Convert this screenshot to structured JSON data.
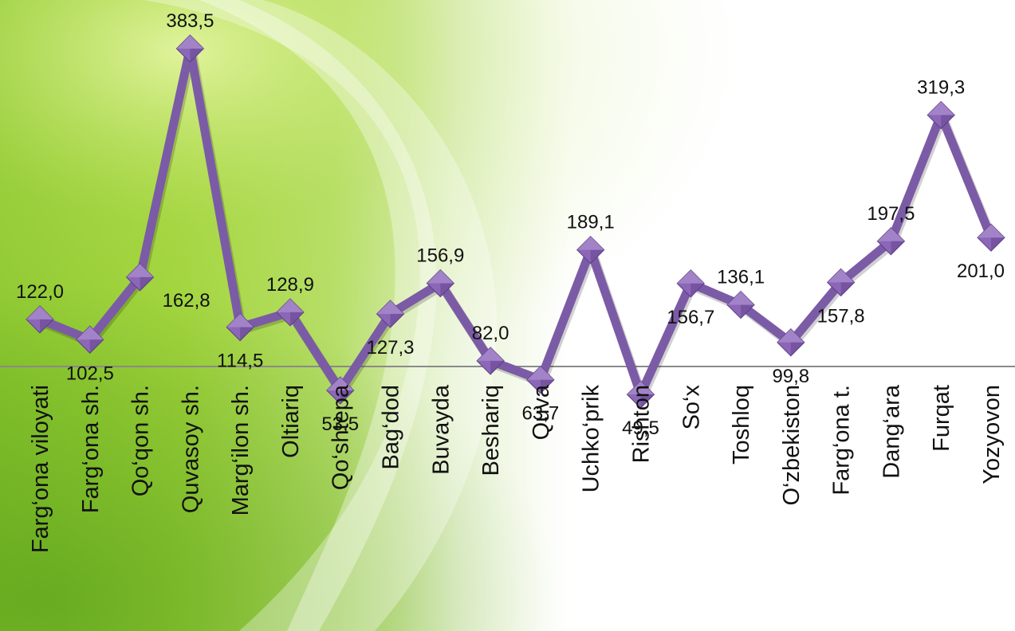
{
  "colors": {
    "line": "#7B5BA6",
    "marker": "#8C67B8",
    "marker_light": "#B79AD6",
    "marker_dark": "#5C3F86",
    "axis": "#8A8A8A",
    "green_bright": "#A5D63A",
    "green_deep": "#5DA61C",
    "background_white": "#FFFFFF"
  },
  "chart_data": {
    "type": "line",
    "title": "",
    "xlabel": "",
    "ylabel": "",
    "ylim": [
      40,
      400
    ],
    "grid": false,
    "legend": "none",
    "categories": [
      "Farg‘ona viloyati",
      "Farg‘ona sh.",
      "Qo‘qon sh.",
      "Quvasoy sh.",
      "Marg‘ilon sh.",
      "Oltiariq",
      "Qo‘shtepa",
      "Bag‘dod",
      "Buvayda",
      "Beshariq",
      "Quva",
      "Uchko‘prik",
      "Rishton",
      "So‘x",
      "Toshloq",
      "O‘zbekiston",
      "Farg‘ona t.",
      "Dang‘ara",
      "Furqat",
      "Yozyovon"
    ],
    "series": [
      {
        "values": [
          122.0,
          102.5,
          162.8,
          383.5,
          114.5,
          128.9,
          53.5,
          127.3,
          156.9,
          82.0,
          63.7,
          189.1,
          49.5,
          156.7,
          136.1,
          99.8,
          157.8,
          197.5,
          319.3,
          201.0
        ],
        "labels": [
          "122,0",
          "102,5",
          "162,8",
          "383,5",
          "114,5",
          "128,9",
          "53,5",
          "127,3",
          "156,9",
          "82,0",
          "63,7",
          "189,1",
          "49,5",
          "156,7",
          "136,1",
          "99,8",
          "157,8",
          "197,5",
          "319,3",
          "201,0"
        ],
        "label_positions": [
          "above",
          "below",
          "below-right",
          "above",
          "below",
          "above",
          "below",
          "below",
          "above",
          "above",
          "below",
          "above",
          "below",
          "below",
          "above",
          "below",
          "below",
          "above",
          "above",
          "below"
        ]
      }
    ]
  }
}
